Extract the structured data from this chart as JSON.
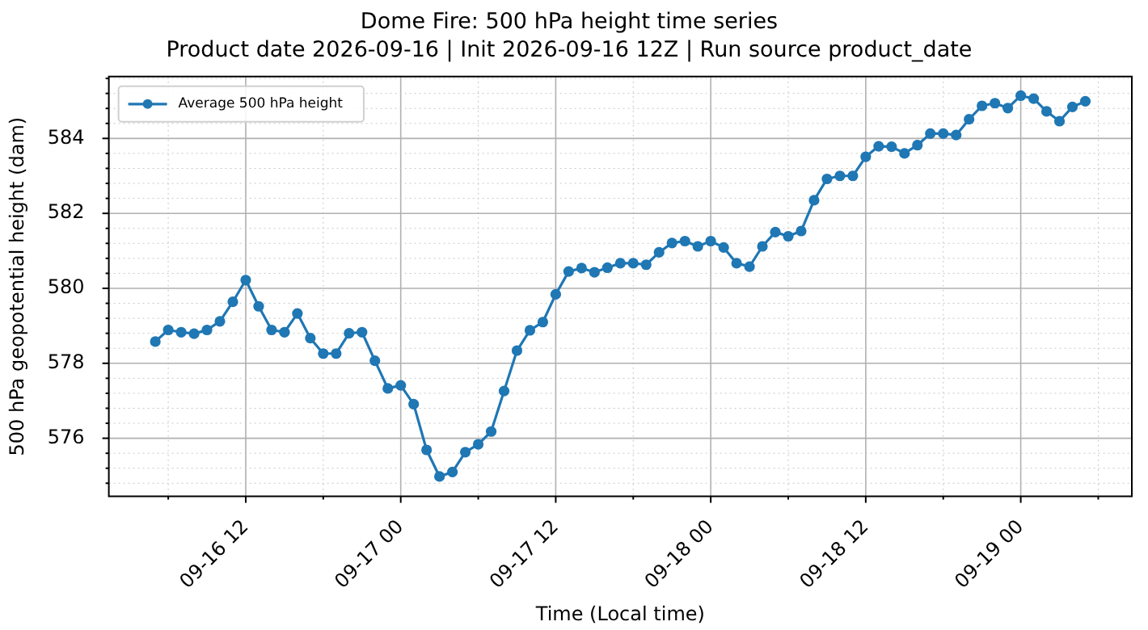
{
  "chart_data": {
    "type": "line",
    "title": "Dome Fire: 500 hPa height time series",
    "subtitle": "Product date 2026-09-16 | Init 2026-09-16 12Z | Run source product_date",
    "xlabel": "Time (Local time)",
    "ylabel": "500 hPa geopotential height (dam)",
    "x": [
      "2026-09-16T05:00",
      "2026-09-16T06:00",
      "2026-09-16T07:00",
      "2026-09-16T08:00",
      "2026-09-16T09:00",
      "2026-09-16T10:00",
      "2026-09-16T11:00",
      "2026-09-16T12:00",
      "2026-09-16T13:00",
      "2026-09-16T14:00",
      "2026-09-16T15:00",
      "2026-09-16T16:00",
      "2026-09-16T17:00",
      "2026-09-16T18:00",
      "2026-09-16T19:00",
      "2026-09-16T20:00",
      "2026-09-16T21:00",
      "2026-09-16T22:00",
      "2026-09-16T23:00",
      "2026-09-17T00:00",
      "2026-09-17T01:00",
      "2026-09-17T02:00",
      "2026-09-17T03:00",
      "2026-09-17T04:00",
      "2026-09-17T05:00",
      "2026-09-17T06:00",
      "2026-09-17T07:00",
      "2026-09-17T08:00",
      "2026-09-17T09:00",
      "2026-09-17T10:00",
      "2026-09-17T11:00",
      "2026-09-17T12:00",
      "2026-09-17T13:00",
      "2026-09-17T14:00",
      "2026-09-17T15:00",
      "2026-09-17T16:00",
      "2026-09-17T17:00",
      "2026-09-17T18:00",
      "2026-09-17T19:00",
      "2026-09-17T20:00",
      "2026-09-17T21:00",
      "2026-09-17T22:00",
      "2026-09-17T23:00",
      "2026-09-18T00:00",
      "2026-09-18T01:00",
      "2026-09-18T02:00",
      "2026-09-18T03:00",
      "2026-09-18T04:00",
      "2026-09-18T05:00",
      "2026-09-18T06:00",
      "2026-09-18T07:00",
      "2026-09-18T08:00",
      "2026-09-18T09:00",
      "2026-09-18T10:00",
      "2026-09-18T11:00",
      "2026-09-18T12:00",
      "2026-09-18T13:00",
      "2026-09-18T14:00",
      "2026-09-18T15:00",
      "2026-09-18T16:00",
      "2026-09-18T17:00",
      "2026-09-18T18:00",
      "2026-09-18T19:00",
      "2026-09-18T20:00",
      "2026-09-18T21:00",
      "2026-09-18T22:00",
      "2026-09-18T23:00",
      "2026-09-19T00:00",
      "2026-09-19T01:00",
      "2026-09-19T02:00",
      "2026-09-19T03:00",
      "2026-09-19T04:00",
      "2026-09-19T05:00"
    ],
    "series": [
      {
        "name": "Average 500 hPa height",
        "color": "#1f77b4",
        "values": [
          578.58,
          578.89,
          578.83,
          578.79,
          578.89,
          579.12,
          579.64,
          580.22,
          579.52,
          578.89,
          578.83,
          579.33,
          578.67,
          578.26,
          578.26,
          578.8,
          578.83,
          578.07,
          577.33,
          577.41,
          576.91,
          575.69,
          574.98,
          575.1,
          575.63,
          575.84,
          576.18,
          577.26,
          578.34,
          578.88,
          579.1,
          579.84,
          580.45,
          580.54,
          580.43,
          580.55,
          580.67,
          580.67,
          580.63,
          580.96,
          581.21,
          581.26,
          581.12,
          581.26,
          581.09,
          580.67,
          580.58,
          581.12,
          581.5,
          581.39,
          581.53,
          582.35,
          582.92,
          583.0,
          583.0,
          583.51,
          583.79,
          583.78,
          583.6,
          583.82,
          584.13,
          584.13,
          584.09,
          584.51,
          584.87,
          584.94,
          584.81,
          585.14,
          585.06,
          584.72,
          584.46,
          584.84,
          584.99
        ]
      }
    ],
    "xlim": [
      "2026-09-16T01:24",
      "2026-09-19T08:36"
    ],
    "xticks": [
      {
        "value": "2026-09-16T06:00",
        "label": null
      },
      {
        "value": "2026-09-16T12:00",
        "label": "09-16 12"
      },
      {
        "value": "2026-09-16T18:00",
        "label": null
      },
      {
        "value": "2026-09-17T00:00",
        "label": "09-17 00"
      },
      {
        "value": "2026-09-17T06:00",
        "label": null
      },
      {
        "value": "2026-09-17T12:00",
        "label": "09-17 12"
      },
      {
        "value": "2026-09-17T18:00",
        "label": null
      },
      {
        "value": "2026-09-18T00:00",
        "label": "09-18 00"
      },
      {
        "value": "2026-09-18T06:00",
        "label": null
      },
      {
        "value": "2026-09-18T12:00",
        "label": "09-18 12"
      },
      {
        "value": "2026-09-18T18:00",
        "label": null
      },
      {
        "value": "2026-09-19T00:00",
        "label": "09-19 00"
      },
      {
        "value": "2026-09-19T06:00",
        "label": null
      }
    ],
    "ylim": [
      574.45,
      585.65
    ],
    "yticks": [
      {
        "value": 574.8,
        "label": null
      },
      {
        "value": 575.2,
        "label": null
      },
      {
        "value": 575.6,
        "label": null
      },
      576,
      {
        "value": 576.4,
        "label": null
      },
      {
        "value": 576.8,
        "label": null
      },
      {
        "value": 577.2,
        "label": null
      },
      {
        "value": 577.6,
        "label": null
      },
      578,
      {
        "value": 578.4,
        "label": null
      },
      {
        "value": 578.8,
        "label": null
      },
      {
        "value": 579.2,
        "label": null
      },
      {
        "value": 579.6,
        "label": null
      },
      580,
      {
        "value": 580.4,
        "label": null
      },
      {
        "value": 580.8,
        "label": null
      },
      {
        "value": 581.2,
        "label": null
      },
      {
        "value": 581.6,
        "label": null
      },
      582,
      {
        "value": 582.4,
        "label": null
      },
      {
        "value": 582.8,
        "label": null
      },
      {
        "value": 583.2,
        "label": null
      },
      {
        "value": 583.6,
        "label": null
      },
      584,
      {
        "value": 584.4,
        "label": null
      },
      {
        "value": 584.8,
        "label": null
      },
      {
        "value": 585.2,
        "label": null
      },
      {
        "value": 585.6,
        "label": null
      }
    ],
    "grid": true,
    "legend": "top left",
    "marker": "circle",
    "line_style": "solid"
  }
}
